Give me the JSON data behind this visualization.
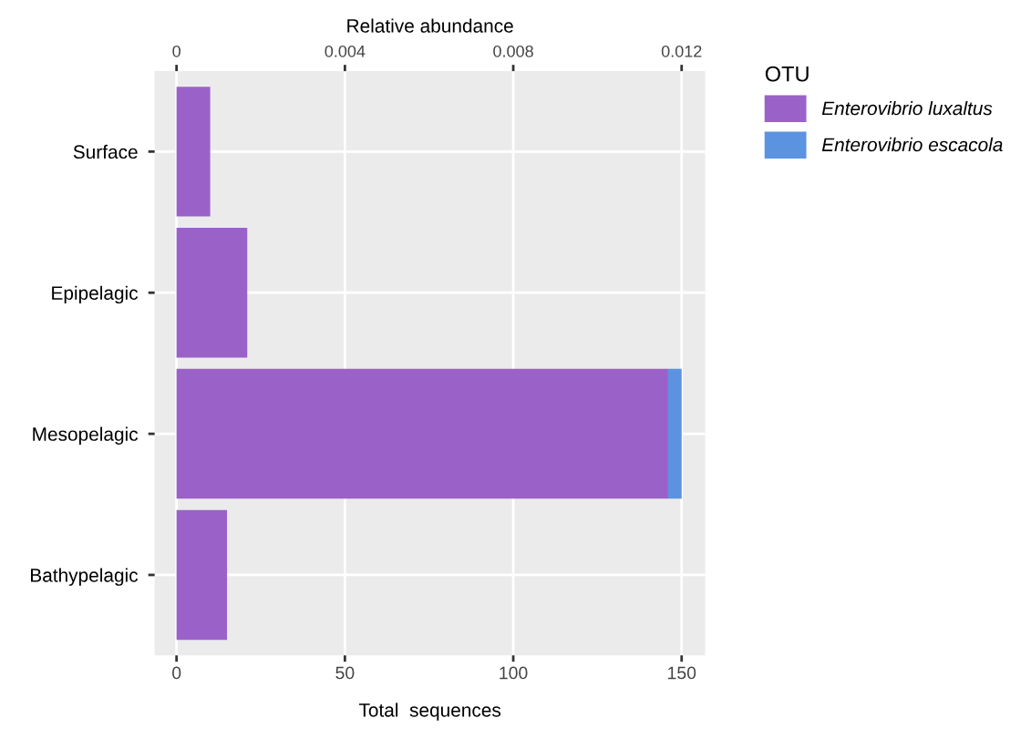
{
  "chart_data": {
    "type": "bar",
    "orientation": "horizontal",
    "stacked": true,
    "categories": [
      "Surface",
      "Epipelagic",
      "Mesopelagic",
      "Bathypelagic"
    ],
    "series": [
      {
        "name": "Enterovibrio luxaltus",
        "color": "#9a62c9",
        "values": [
          10,
          21,
          146,
          15
        ]
      },
      {
        "name": "Enterovibrio escacola",
        "color": "#5b93e0",
        "values": [
          0,
          0,
          4,
          0
        ]
      }
    ],
    "xlabel": "Total  sequences",
    "x2label": "Relative abundance",
    "xlim": [
      -6.5,
      157
    ],
    "xticks": [
      0,
      50,
      100,
      150
    ],
    "x2lim": [
      -0.00052,
      0.01256
    ],
    "x2ticks": [
      0,
      0.004,
      0.008,
      0.012
    ],
    "legend_title": "OTU",
    "legend": "right",
    "grid": true
  }
}
